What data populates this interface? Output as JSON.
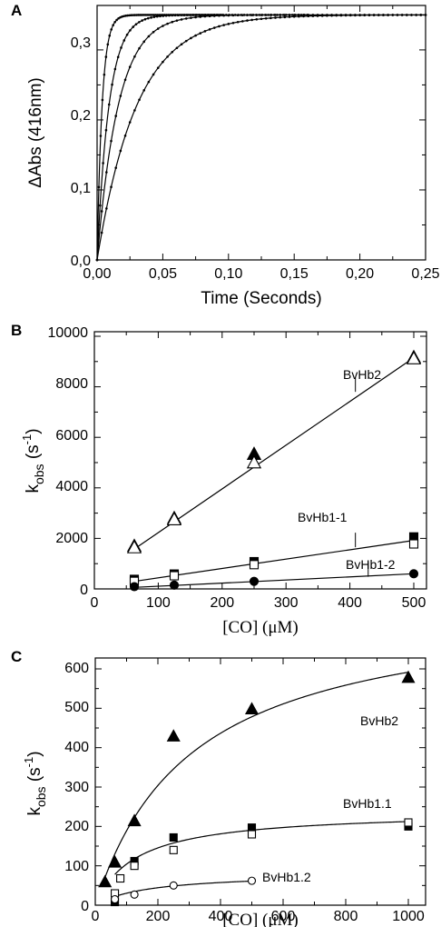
{
  "chart_data": [
    {
      "panel": "A",
      "type": "line",
      "xlabel": "Time (Seconds)",
      "ylabel": "ΔAbs (416nm)",
      "xlim": [
        0,
        0.25
      ],
      "ylim": [
        0,
        0.35
      ],
      "xticks": [
        "0,00",
        "0,05",
        "0,10",
        "0,15",
        "0,20",
        "0,25"
      ],
      "yticks": [
        "0,0",
        "0,1",
        "0,2",
        "0,3"
      ],
      "grid": false,
      "series": [
        {
          "amplitude": 0.35,
          "k": 260,
          "x_end": 0.095
        },
        {
          "amplitude": 0.35,
          "k": 110,
          "x_end": 0.16
        },
        {
          "amplitude": 0.35,
          "k": 62,
          "x_end": 0.25
        },
        {
          "amplitude": 0.35,
          "k": 33,
          "x_end": 0.25
        }
      ]
    },
    {
      "panel": "B",
      "type": "scatter",
      "xlabel": "[CO] (μM)",
      "ylabel": "kobs (s-1)",
      "xlim": [
        0,
        520
      ],
      "ylim": [
        0,
        10000
      ],
      "xticks": [
        "0",
        "100",
        "200",
        "300",
        "400",
        "500"
      ],
      "yticks": [
        "0",
        "2000",
        "4000",
        "6000",
        "8000",
        "10000"
      ],
      "grid": false,
      "series": [
        {
          "name": "BvHb2",
          "marker": "triangle",
          "filled": true,
          "x": [
            62.5,
            125,
            250,
            500
          ],
          "y": [
            1680,
            2780,
            5320,
            9150
          ]
        },
        {
          "name": "BvHb2",
          "marker": "triangle",
          "filled": false,
          "x": [
            62.5,
            125,
            250,
            500
          ],
          "y": [
            1620,
            2730,
            4980,
            9100
          ]
        },
        {
          "name": "BvHb1-1",
          "marker": "square",
          "filled": true,
          "x": [
            62.5,
            125,
            250,
            500
          ],
          "y": [
            380,
            590,
            1080,
            2060
          ]
        },
        {
          "name": "BvHb1-1",
          "marker": "square",
          "filled": false,
          "x": [
            62.5,
            125,
            250,
            500
          ],
          "y": [
            300,
            520,
            960,
            1780
          ]
        },
        {
          "name": "BvHb1-2",
          "marker": "circle",
          "filled": true,
          "x": [
            62.5,
            125,
            250,
            500
          ],
          "y": [
            90,
            150,
            300,
            600
          ]
        }
      ],
      "fit_lines": [
        {
          "label": "BvHb2",
          "x": [
            62.5,
            500
          ],
          "y": [
            1580,
            9150
          ]
        },
        {
          "label": "BvHb1-1",
          "x": [
            62.5,
            500
          ],
          "y": [
            300,
            1920
          ]
        },
        {
          "label": "BvHb1-2",
          "x": [
            62.5,
            500
          ],
          "y": [
            60,
            600
          ]
        }
      ],
      "annotations": [
        {
          "text": "BvHb2",
          "x": 390,
          "y": 8500,
          "pointer_to": [
            420,
            7800
          ]
        },
        {
          "text": "BvHb1-1",
          "x": 330,
          "y": 3000,
          "pointer_to": [
            420,
            1650
          ]
        },
        {
          "text": "BvHb1-2",
          "x": 400,
          "y": 950,
          "pointer_to": [
            440,
            480
          ]
        }
      ]
    },
    {
      "panel": "C",
      "type": "scatter",
      "xlabel": "[CO] (μM)",
      "ylabel": "kobs (s-1)",
      "xlim": [
        0,
        1000
      ],
      "ylim": [
        0,
        620
      ],
      "xticks": [
        "0",
        "200",
        "400",
        "600",
        "800",
        "1000"
      ],
      "yticks": [
        "0",
        "100",
        "200",
        "300",
        "400",
        "500",
        "600"
      ],
      "grid": false,
      "series": [
        {
          "name": "BvHb2",
          "marker": "triangle",
          "filled": true,
          "x": [
            31,
            62.5,
            125,
            250,
            500,
            1000
          ],
          "y": [
            58,
            108,
            213,
            428,
            497,
            577
          ]
        },
        {
          "name": "BvHb1.1",
          "marker": "square",
          "filled": true,
          "x": [
            62.5,
            125,
            250,
            500,
            1000
          ],
          "y": [
            8,
            112,
            172,
            197,
            200
          ]
        },
        {
          "name": "BvHb1.1",
          "marker": "square",
          "filled": false,
          "x": [
            62.5,
            80,
            125,
            250,
            500,
            1000
          ],
          "y": [
            30,
            68,
            100,
            140,
            180,
            210
          ]
        },
        {
          "name": "BvHb1.2",
          "marker": "circle",
          "filled": false,
          "x": [
            62.5,
            125,
            250,
            500
          ],
          "y": [
            15,
            27,
            50,
            62
          ]
        }
      ],
      "fit_curves": [
        {
          "label": "BvHb2",
          "vmax": 775,
          "km": 310,
          "x_from": 31,
          "x_to": 1000
        },
        {
          "label": "BvHb1.1",
          "vmax": 240,
          "km": 130,
          "x_from": 62.5,
          "x_to": 1000
        },
        {
          "label": "BvHb1.2",
          "vmax": 82,
          "km": 170,
          "x_from": 62.5,
          "x_to": 500
        }
      ],
      "annotations": [
        {
          "text": "BvHb2",
          "x": 810,
          "y": 540
        },
        {
          "text": "BvHb1.1",
          "x": 500,
          "y": 250
        },
        {
          "text": "BvHb1.2",
          "x": 540,
          "y": 62
        }
      ]
    }
  ]
}
